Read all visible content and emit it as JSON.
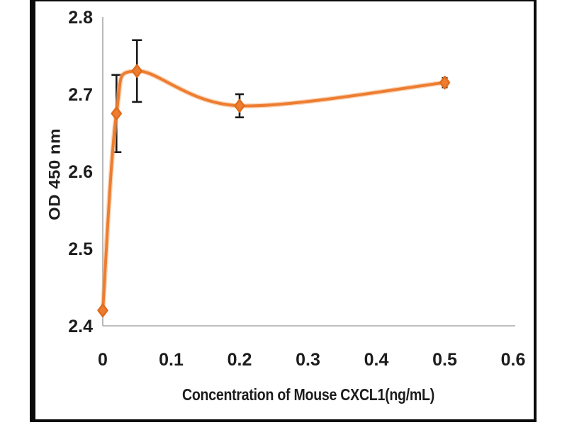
{
  "page": {
    "background": "#ffffff",
    "frame_border_color": "#0a0a0a"
  },
  "chart_data": {
    "type": "line",
    "title": "",
    "xlabel": "Concentration of Mouse CXCL1(ng/mL)",
    "ylabel": "OD 450 nm",
    "x": [
      0,
      0.02,
      0.05,
      0.2,
      0.5
    ],
    "y": [
      2.42,
      2.675,
      2.73,
      2.685,
      2.715
    ],
    "y_error": [
      0,
      0.05,
      0.04,
      0.015,
      0.006
    ],
    "xlim": [
      0,
      0.6
    ],
    "ylim": [
      2.4,
      2.8
    ],
    "x_ticks": [
      "0",
      "0.1",
      "0.2",
      "0.3",
      "0.4",
      "0.5",
      "0.6"
    ],
    "y_ticks": [
      "2.4",
      "2.5",
      "2.6",
      "2.7",
      "2.8"
    ],
    "grid": false,
    "legend": null,
    "marker_shape": "diamond",
    "series_color": "#ED7D31",
    "series_halo_color": "#F5B07A",
    "marker_edge_color": "#E06C1C",
    "error_bar_color": "#1a1a1a",
    "axis_color": "#a8a8a8",
    "text_color": "#1c1c1c"
  }
}
